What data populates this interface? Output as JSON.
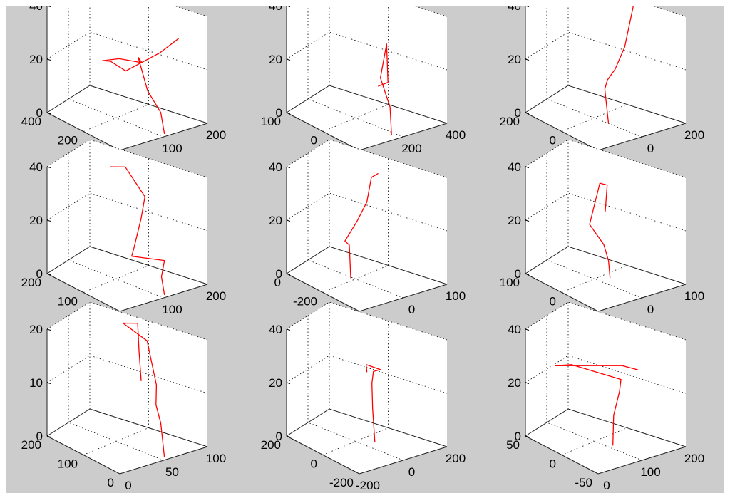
{
  "chart_data": [
    {
      "type": "line3d",
      "zticks": [
        "0",
        "20",
        "40"
      ],
      "xticks": [
        "0",
        "100",
        "200"
      ],
      "yticks": [
        "0",
        "200",
        "400"
      ],
      "zlim": [
        0,
        40
      ],
      "series": [
        {
          "values": [
            [
              0.55,
              0.05,
              0.0
            ],
            [
              0.55,
              0.1,
              0.18
            ],
            [
              0.65,
              0.4,
              0.25
            ],
            [
              0.75,
              0.65,
              0.45
            ],
            [
              0.85,
              0.72,
              0.35
            ],
            [
              0.7,
              0.85,
              0.38
            ],
            [
              0.45,
              0.78,
              0.45
            ],
            [
              0.35,
              0.55,
              0.55
            ],
            [
              0.4,
              0.4,
              0.5
            ],
            [
              0.75,
              0.35,
              0.6
            ],
            [
              1.0,
              0.4,
              0.65
            ]
          ]
        }
      ]
    },
    {
      "type": "line3d",
      "zticks": [
        "0",
        "20",
        "40"
      ],
      "xticks": [
        "0",
        "200",
        "400"
      ],
      "yticks": [
        "-100",
        "0",
        "100"
      ],
      "zlim": [
        0,
        40
      ],
      "series": [
        {
          "values": [
            [
              0.45,
              0.1,
              0.0
            ],
            [
              0.45,
              0.12,
              0.25
            ],
            [
              0.55,
              0.3,
              0.28
            ],
            [
              0.7,
              0.55,
              0.3
            ],
            [
              0.82,
              0.7,
              0.22
            ],
            [
              0.85,
              0.65,
              0.55
            ],
            [
              0.7,
              0.45,
              0.3
            ],
            [
              0.55,
              0.4,
              0.32
            ]
          ]
        }
      ]
    },
    {
      "type": "line3d",
      "zticks": [
        "0",
        "20",
        "40"
      ],
      "xticks": [
        "-200",
        "0",
        "200"
      ],
      "yticks": [
        "-200",
        "0",
        "200"
      ],
      "zlim": [
        0,
        40
      ],
      "series": [
        {
          "values": [
            [
              0.45,
              0.4,
              0.0
            ],
            [
              0.45,
              0.45,
              0.3
            ],
            [
              0.52,
              0.5,
              0.35
            ],
            [
              0.65,
              0.55,
              0.4
            ],
            [
              0.8,
              0.6,
              0.55
            ],
            [
              0.92,
              0.68,
              0.7
            ],
            [
              1.0,
              0.72,
              0.85
            ]
          ]
        }
      ]
    },
    {
      "type": "line3d",
      "zticks": [
        "0",
        "20",
        "40"
      ],
      "xticks": [
        "0",
        "100",
        "200"
      ],
      "yticks": [
        "0",
        "100",
        "200"
      ],
      "zlim": [
        0,
        40
      ],
      "series": [
        {
          "values": [
            [
              0.55,
              0.05,
              0.0
            ],
            [
              0.6,
              0.15,
              0.12
            ],
            [
              0.8,
              0.35,
              0.15
            ],
            [
              0.55,
              0.5,
              0.2
            ],
            [
              0.45,
              0.35,
              0.35
            ],
            [
              0.7,
              0.55,
              0.5
            ],
            [
              0.95,
              0.8,
              0.55
            ],
            [
              0.85,
              0.95,
              0.8
            ],
            [
              0.6,
              0.85,
              0.9
            ]
          ]
        }
      ]
    },
    {
      "type": "line3d",
      "zticks": [
        "0",
        "20",
        "40"
      ],
      "xticks": [
        "-100",
        "0",
        "100"
      ],
      "yticks": [
        "-400",
        "-200",
        "0"
      ],
      "zlim": [
        0,
        40
      ],
      "series": [
        {
          "values": [
            [
              0.4,
              0.6,
              0.0
            ],
            [
              0.4,
              0.62,
              0.3
            ],
            [
              0.35,
              0.62,
              0.35
            ],
            [
              0.55,
              0.7,
              0.45
            ],
            [
              0.75,
              0.8,
              0.55
            ],
            [
              0.9,
              0.92,
              0.7
            ],
            [
              1.0,
              0.95,
              0.7
            ]
          ]
        }
      ]
    },
    {
      "type": "line3d",
      "zticks": [
        "0",
        "20",
        "40"
      ],
      "xticks": [
        "-100",
        "0",
        "100"
      ],
      "yticks": [
        "-100",
        "0",
        "100"
      ],
      "zlim": [
        0,
        40
      ],
      "series": [
        {
          "values": [
            [
              0.55,
              0.5,
              0.0
            ],
            [
              0.55,
              0.52,
              0.15
            ],
            [
              0.52,
              0.55,
              0.3
            ],
            [
              0.4,
              0.6,
              0.5
            ],
            [
              0.6,
              0.7,
              0.8
            ],
            [
              0.7,
              0.72,
              0.75
            ],
            [
              0.62,
              0.65,
              0.55
            ]
          ]
        }
      ]
    },
    {
      "type": "line3d",
      "zticks": [
        "0",
        "10",
        "20"
      ],
      "xticks": [
        "0",
        "50",
        "100"
      ],
      "yticks": [
        "0",
        "100",
        "200"
      ],
      "zlim": [
        0,
        20
      ],
      "series": [
        {
          "values": [
            [
              0.55,
              0.05,
              0.0
            ],
            [
              0.55,
              0.1,
              0.3
            ],
            [
              0.62,
              0.25,
              0.4
            ],
            [
              0.75,
              0.4,
              0.5
            ],
            [
              0.85,
              0.65,
              0.8
            ],
            [
              0.7,
              0.8,
              0.95
            ],
            [
              0.95,
              0.9,
              0.85
            ],
            [
              0.8,
              0.7,
              0.7
            ],
            [
              0.7,
              0.55,
              0.5
            ]
          ]
        }
      ]
    },
    {
      "type": "line3d",
      "zticks": [
        "0",
        "20",
        "40"
      ],
      "xticks": [
        "-200",
        "0",
        "200"
      ],
      "yticks": [
        "-200",
        "0",
        "200"
      ],
      "zlim": [
        0,
        40
      ],
      "series": [
        {
          "values": [
            [
              0.55,
              0.45,
              0.0
            ],
            [
              0.55,
              0.48,
              0.3
            ],
            [
              0.6,
              0.55,
              0.5
            ],
            [
              0.7,
              0.65,
              0.55
            ],
            [
              0.82,
              0.7,
              0.52
            ],
            [
              0.7,
              0.75,
              0.58
            ],
            [
              0.65,
              0.68,
              0.55
            ]
          ]
        }
      ]
    },
    {
      "type": "line3d",
      "zticks": [
        "0",
        "20",
        "40"
      ],
      "xticks": [
        "0",
        "100",
        "200"
      ],
      "yticks": [
        "-50",
        "0",
        "50"
      ],
      "zlim": [
        0,
        40
      ],
      "series": [
        {
          "values": [
            [
              0.5,
              0.4,
              0.0
            ],
            [
              0.55,
              0.45,
              0.25
            ],
            [
              0.7,
              0.55,
              0.4
            ],
            [
              0.8,
              0.65,
              0.45
            ],
            [
              0.4,
              0.85,
              0.62
            ],
            [
              0.3,
              0.95,
              0.6
            ],
            [
              0.85,
              0.7,
              0.55
            ],
            [
              0.95,
              0.6,
              0.52
            ]
          ]
        }
      ]
    }
  ],
  "colors": {
    "background": "#cccccc",
    "axes_face": "#ffffff",
    "line": "#ff0000"
  }
}
